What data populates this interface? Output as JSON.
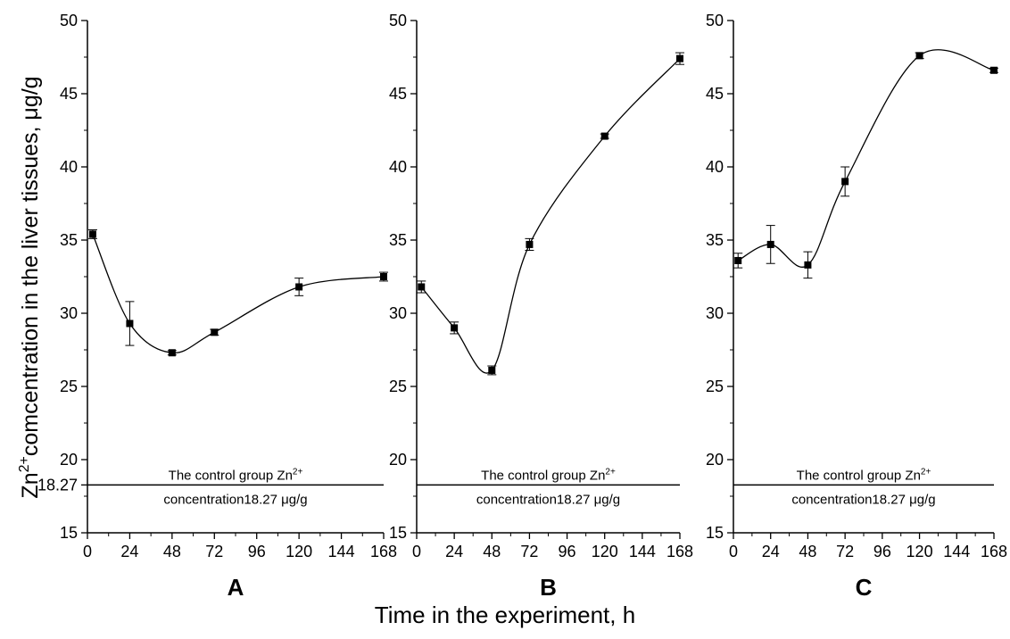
{
  "figure": {
    "ylabel": {
      "zn": "Zn",
      "sup": "2+",
      "rest": "comcentration in the liver tissues, μg/g"
    },
    "xlabel": "Time in the experiment, h",
    "extra_y_tick": "18.27",
    "control_note": {
      "line1": "The control group Zn",
      "line1_sup": "2+",
      "line2": "concentration18.27 μg/g"
    }
  },
  "chart_data": [
    {
      "type": "line",
      "panel": "A",
      "x": [
        3,
        24,
        48,
        72,
        120,
        168
      ],
      "y": [
        35.4,
        29.3,
        27.3,
        28.7,
        31.8,
        32.5
      ],
      "err": [
        0.3,
        1.5,
        0.15,
        0.2,
        0.6,
        0.3
      ],
      "control": 18.27,
      "xlim": [
        0,
        168
      ],
      "ylim": [
        15,
        50
      ],
      "xticks": [
        0,
        24,
        48,
        72,
        96,
        120,
        144,
        168
      ],
      "yticks": [
        15,
        20,
        25,
        30,
        35,
        40,
        45,
        50
      ],
      "marker": "square",
      "curve": "smooth"
    },
    {
      "type": "line",
      "panel": "B",
      "x": [
        3,
        24,
        48,
        72,
        120,
        168
      ],
      "y": [
        31.8,
        29.0,
        26.1,
        34.7,
        42.1,
        47.4
      ],
      "err": [
        0.4,
        0.4,
        0.3,
        0.4,
        0.15,
        0.4
      ],
      "control": 18.27,
      "xlim": [
        0,
        168
      ],
      "ylim": [
        15,
        50
      ],
      "xticks": [
        0,
        24,
        48,
        72,
        96,
        120,
        144,
        168
      ],
      "yticks": [
        15,
        20,
        25,
        30,
        35,
        40,
        45,
        50
      ],
      "marker": "square",
      "curve": "smooth"
    },
    {
      "type": "line",
      "panel": "C",
      "x": [
        3,
        24,
        48,
        72,
        120,
        168
      ],
      "y": [
        33.6,
        34.7,
        33.3,
        39.0,
        47.6,
        46.6
      ],
      "err": [
        0.5,
        1.3,
        0.9,
        1.0,
        0.2,
        0.15
      ],
      "control": 18.27,
      "xlim": [
        0,
        168
      ],
      "ylim": [
        15,
        50
      ],
      "xticks": [
        0,
        24,
        48,
        72,
        96,
        120,
        144,
        168
      ],
      "yticks": [
        15,
        20,
        25,
        30,
        35,
        40,
        45,
        50
      ],
      "marker": "square",
      "curve": "smooth"
    }
  ]
}
